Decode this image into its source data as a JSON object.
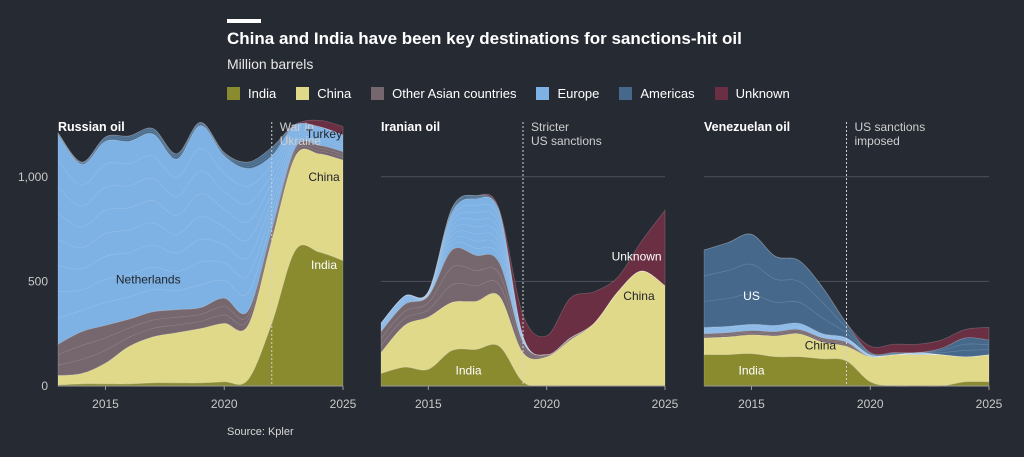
{
  "title": "China and India have been key destinations for sanctions-hit oil",
  "subtitle": "Million barrels",
  "source": "Source: Kpler",
  "legend": [
    {
      "name": "India",
      "color": "#8a8a2e"
    },
    {
      "name": "China",
      "color": "#e1d98a"
    },
    {
      "name": "Other Asian countries",
      "color": "#76676e"
    },
    {
      "name": "Europe",
      "color": "#7eb1e4"
    },
    {
      "name": "Americas",
      "color": "#46698b"
    },
    {
      "name": "Unknown",
      "color": "#6a2f42"
    }
  ],
  "chart_data": [
    {
      "type": "area",
      "title": "Russian oil",
      "x": [
        2013,
        2014,
        2015,
        2016,
        2017,
        2018,
        2019,
        2020,
        2021,
        2022,
        2023,
        2024,
        2025
      ],
      "xticks": [
        2015,
        2020,
        2025
      ],
      "ylim": [
        0,
        1300
      ],
      "yticks": [
        0,
        500,
        1000
      ],
      "ytick_labels": [
        "0",
        "500",
        "1,000"
      ],
      "series": [
        {
          "name": "India",
          "values": [
            5,
            10,
            10,
            10,
            15,
            15,
            15,
            20,
            30,
            300,
            650,
            640,
            600
          ]
        },
        {
          "name": "China",
          "values": [
            45,
            50,
            100,
            180,
            220,
            240,
            260,
            280,
            260,
            400,
            450,
            470,
            480
          ]
        },
        {
          "name": "Other Asian countries",
          "values": [
            150,
            200,
            180,
            130,
            120,
            110,
            100,
            120,
            70,
            50,
            40,
            40,
            40
          ]
        },
        {
          "name": "Europe",
          "values": [
            1000,
            800,
            880,
            850,
            850,
            720,
            870,
            680,
            680,
            350,
            110,
            90,
            80
          ]
        },
        {
          "name": "Americas",
          "values": [
            10,
            10,
            20,
            25,
            25,
            25,
            15,
            15,
            30,
            40,
            0,
            0,
            0
          ]
        },
        {
          "name": "Unknown",
          "values": [
            0,
            0,
            0,
            0,
            0,
            0,
            0,
            0,
            0,
            0,
            0,
            30,
            40
          ]
        }
      ],
      "event": {
        "x": 2022,
        "label": [
          "War in",
          "Ukraine"
        ]
      },
      "labels": [
        {
          "text": "Netherlands",
          "x": 2016.8,
          "y": 490,
          "dark": true
        },
        {
          "text": "Turkey",
          "x": 2024.2,
          "y": 1185,
          "dark": true
        },
        {
          "text": "China",
          "x": 2024.2,
          "y": 980,
          "dark": true
        },
        {
          "text": "India",
          "x": 2024.2,
          "y": 560,
          "dark": false
        }
      ]
    },
    {
      "type": "area",
      "title": "Iranian oil",
      "x": [
        2013,
        2014,
        2015,
        2016,
        2017,
        2018,
        2019,
        2020,
        2021,
        2022,
        2023,
        2024,
        2025
      ],
      "xticks": [
        2015,
        2020,
        2025
      ],
      "ylim": [
        0,
        1300
      ],
      "yticks": [
        0,
        500,
        1000
      ],
      "ytick_labels": [
        "0",
        "500",
        "1,000"
      ],
      "series": [
        {
          "name": "India",
          "values": [
            60,
            90,
            80,
            170,
            175,
            190,
            20,
            0,
            0,
            0,
            0,
            0,
            0
          ]
        },
        {
          "name": "China",
          "values": [
            100,
            200,
            250,
            230,
            230,
            240,
            140,
            140,
            220,
            300,
            450,
            550,
            480
          ]
        },
        {
          "name": "Other Asian countries",
          "values": [
            100,
            100,
            100,
            250,
            220,
            160,
            50,
            10,
            10,
            0,
            0,
            0,
            0
          ]
        },
        {
          "name": "Europe",
          "values": [
            40,
            40,
            20,
            180,
            270,
            240,
            30,
            0,
            0,
            0,
            0,
            0,
            0
          ]
        },
        {
          "name": "Americas",
          "values": [
            0,
            0,
            0,
            20,
            15,
            10,
            0,
            0,
            0,
            0,
            0,
            0,
            0
          ]
        },
        {
          "name": "Unknown",
          "values": [
            0,
            0,
            0,
            0,
            0,
            0,
            100,
            90,
            190,
            150,
            70,
            140,
            360
          ]
        }
      ],
      "event": {
        "x": 2019,
        "label": [
          "Stricter",
          "US sanctions"
        ]
      },
      "labels": [
        {
          "text": "Unknown",
          "x": 2023.8,
          "y": 600,
          "dark": false
        },
        {
          "text": "China",
          "x": 2023.9,
          "y": 410,
          "dark": true
        },
        {
          "text": "India",
          "x": 2016.7,
          "y": 55,
          "dark": false
        }
      ]
    },
    {
      "type": "area",
      "title": "Venezuelan oil",
      "x": [
        2013,
        2014,
        2015,
        2016,
        2017,
        2018,
        2019,
        2020,
        2021,
        2022,
        2023,
        2024,
        2025
      ],
      "xticks": [
        2015,
        2020,
        2025
      ],
      "ylim": [
        0,
        1300
      ],
      "yticks": [
        0,
        500,
        1000
      ],
      "ytick_labels": [
        "0",
        "500",
        "1,000"
      ],
      "series": [
        {
          "name": "India",
          "values": [
            150,
            150,
            155,
            140,
            140,
            130,
            120,
            20,
            0,
            0,
            0,
            20,
            20
          ]
        },
        {
          "name": "China",
          "values": [
            80,
            85,
            90,
            100,
            110,
            80,
            70,
            120,
            150,
            150,
            150,
            120,
            130
          ]
        },
        {
          "name": "Other Asian countries",
          "values": [
            20,
            20,
            20,
            20,
            20,
            20,
            20,
            0,
            0,
            0,
            0,
            0,
            0
          ]
        },
        {
          "name": "Europe",
          "values": [
            30,
            30,
            30,
            30,
            30,
            20,
            20,
            10,
            0,
            10,
            0,
            0,
            0
          ]
        },
        {
          "name": "Americas",
          "values": [
            370,
            400,
            430,
            330,
            300,
            220,
            70,
            10,
            10,
            0,
            30,
            90,
            70
          ]
        },
        {
          "name": "Unknown",
          "values": [
            0,
            0,
            0,
            0,
            0,
            0,
            0,
            30,
            40,
            40,
            40,
            40,
            60
          ]
        }
      ],
      "event": {
        "x": 2019,
        "label": [
          "US sanctions",
          "imposed"
        ]
      },
      "labels": [
        {
          "text": "US",
          "x": 2015,
          "y": 410,
          "dark": false
        },
        {
          "text": "China",
          "x": 2017.9,
          "y": 175,
          "dark": true
        },
        {
          "text": "India",
          "x": 2015,
          "y": 55,
          "dark": false
        }
      ]
    }
  ]
}
